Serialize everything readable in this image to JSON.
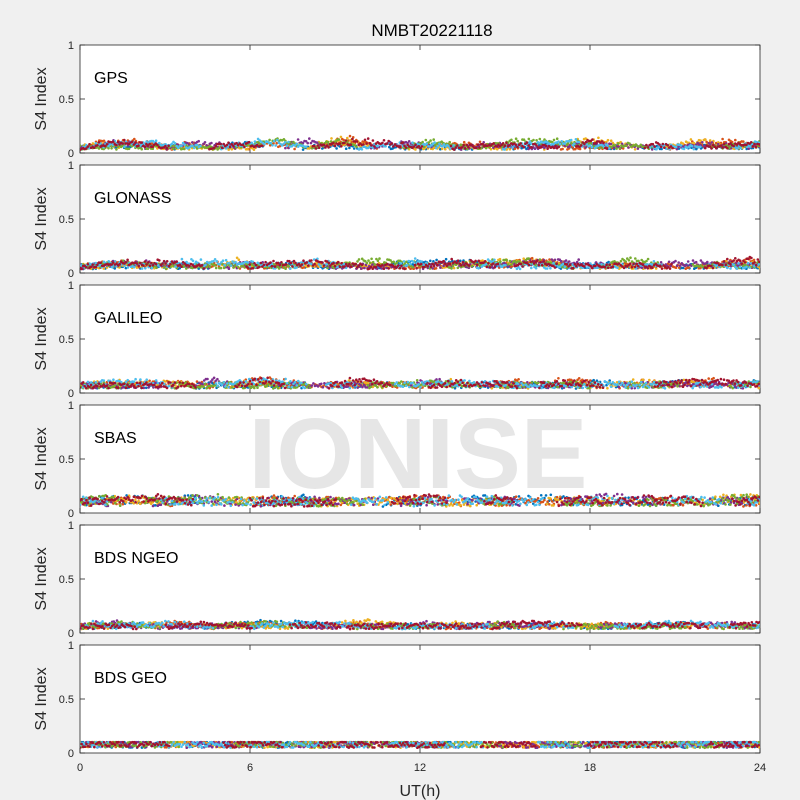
{
  "title": "NMBT20221118",
  "watermark": "IONISE",
  "xlabel": "UT(h)",
  "ylabel": "S4 Index",
  "x_ticks": [
    "0",
    "6",
    "12",
    "18",
    "24"
  ],
  "y_ticks": [
    "0",
    "0.5",
    "1"
  ],
  "colors": [
    "#0072BD",
    "#D95319",
    "#EDB120",
    "#7E2F8E",
    "#77AC30",
    "#4DBEEE",
    "#A2142F"
  ],
  "chart_data": [
    {
      "type": "scatter",
      "system": "GPS",
      "xlim": [
        0,
        24
      ],
      "ylim": [
        0,
        1
      ],
      "xlabel": "UT(h)",
      "ylabel": "S4 Index",
      "series_summary": [
        {
          "x": [
            0,
            24
          ],
          "y_typical": 0.05,
          "y_max": 0.2
        }
      ]
    },
    {
      "type": "scatter",
      "system": "GLONASS",
      "xlim": [
        0,
        24
      ],
      "ylim": [
        0,
        1
      ],
      "xlabel": "UT(h)",
      "ylabel": "S4 Index",
      "series_summary": [
        {
          "x": [
            0,
            24
          ],
          "y_typical": 0.06,
          "y_max": 0.18
        }
      ]
    },
    {
      "type": "scatter",
      "system": "GALILEO",
      "xlim": [
        0,
        24
      ],
      "ylim": [
        0,
        1
      ],
      "xlabel": "UT(h)",
      "ylabel": "S4 Index",
      "series_summary": [
        {
          "x": [
            0,
            24
          ],
          "y_typical": 0.07,
          "y_max": 0.17
        }
      ]
    },
    {
      "type": "scatter",
      "system": "SBAS",
      "xlim": [
        0,
        24
      ],
      "ylim": [
        0,
        1
      ],
      "xlabel": "UT(h)",
      "ylabel": "S4 Index",
      "series_summary": [
        {
          "x": [
            0,
            24
          ],
          "y_typical": 0.1,
          "y_max": 0.18
        }
      ]
    },
    {
      "type": "scatter",
      "system": "BDS NGEO",
      "xlim": [
        0,
        24
      ],
      "ylim": [
        0,
        1
      ],
      "xlabel": "UT(h)",
      "ylabel": "S4 Index",
      "series_summary": [
        {
          "x": [
            0,
            24
          ],
          "y_typical": 0.06,
          "y_max": 0.14
        }
      ]
    },
    {
      "type": "scatter",
      "system": "BDS GEO",
      "xlim": [
        0,
        24
      ],
      "ylim": [
        0,
        1
      ],
      "xlabel": "UT(h)",
      "ylabel": "S4 Index",
      "series_summary": [
        {
          "x": [
            0,
            24
          ],
          "y_typical": 0.08,
          "y_max": 0.1
        }
      ]
    }
  ]
}
